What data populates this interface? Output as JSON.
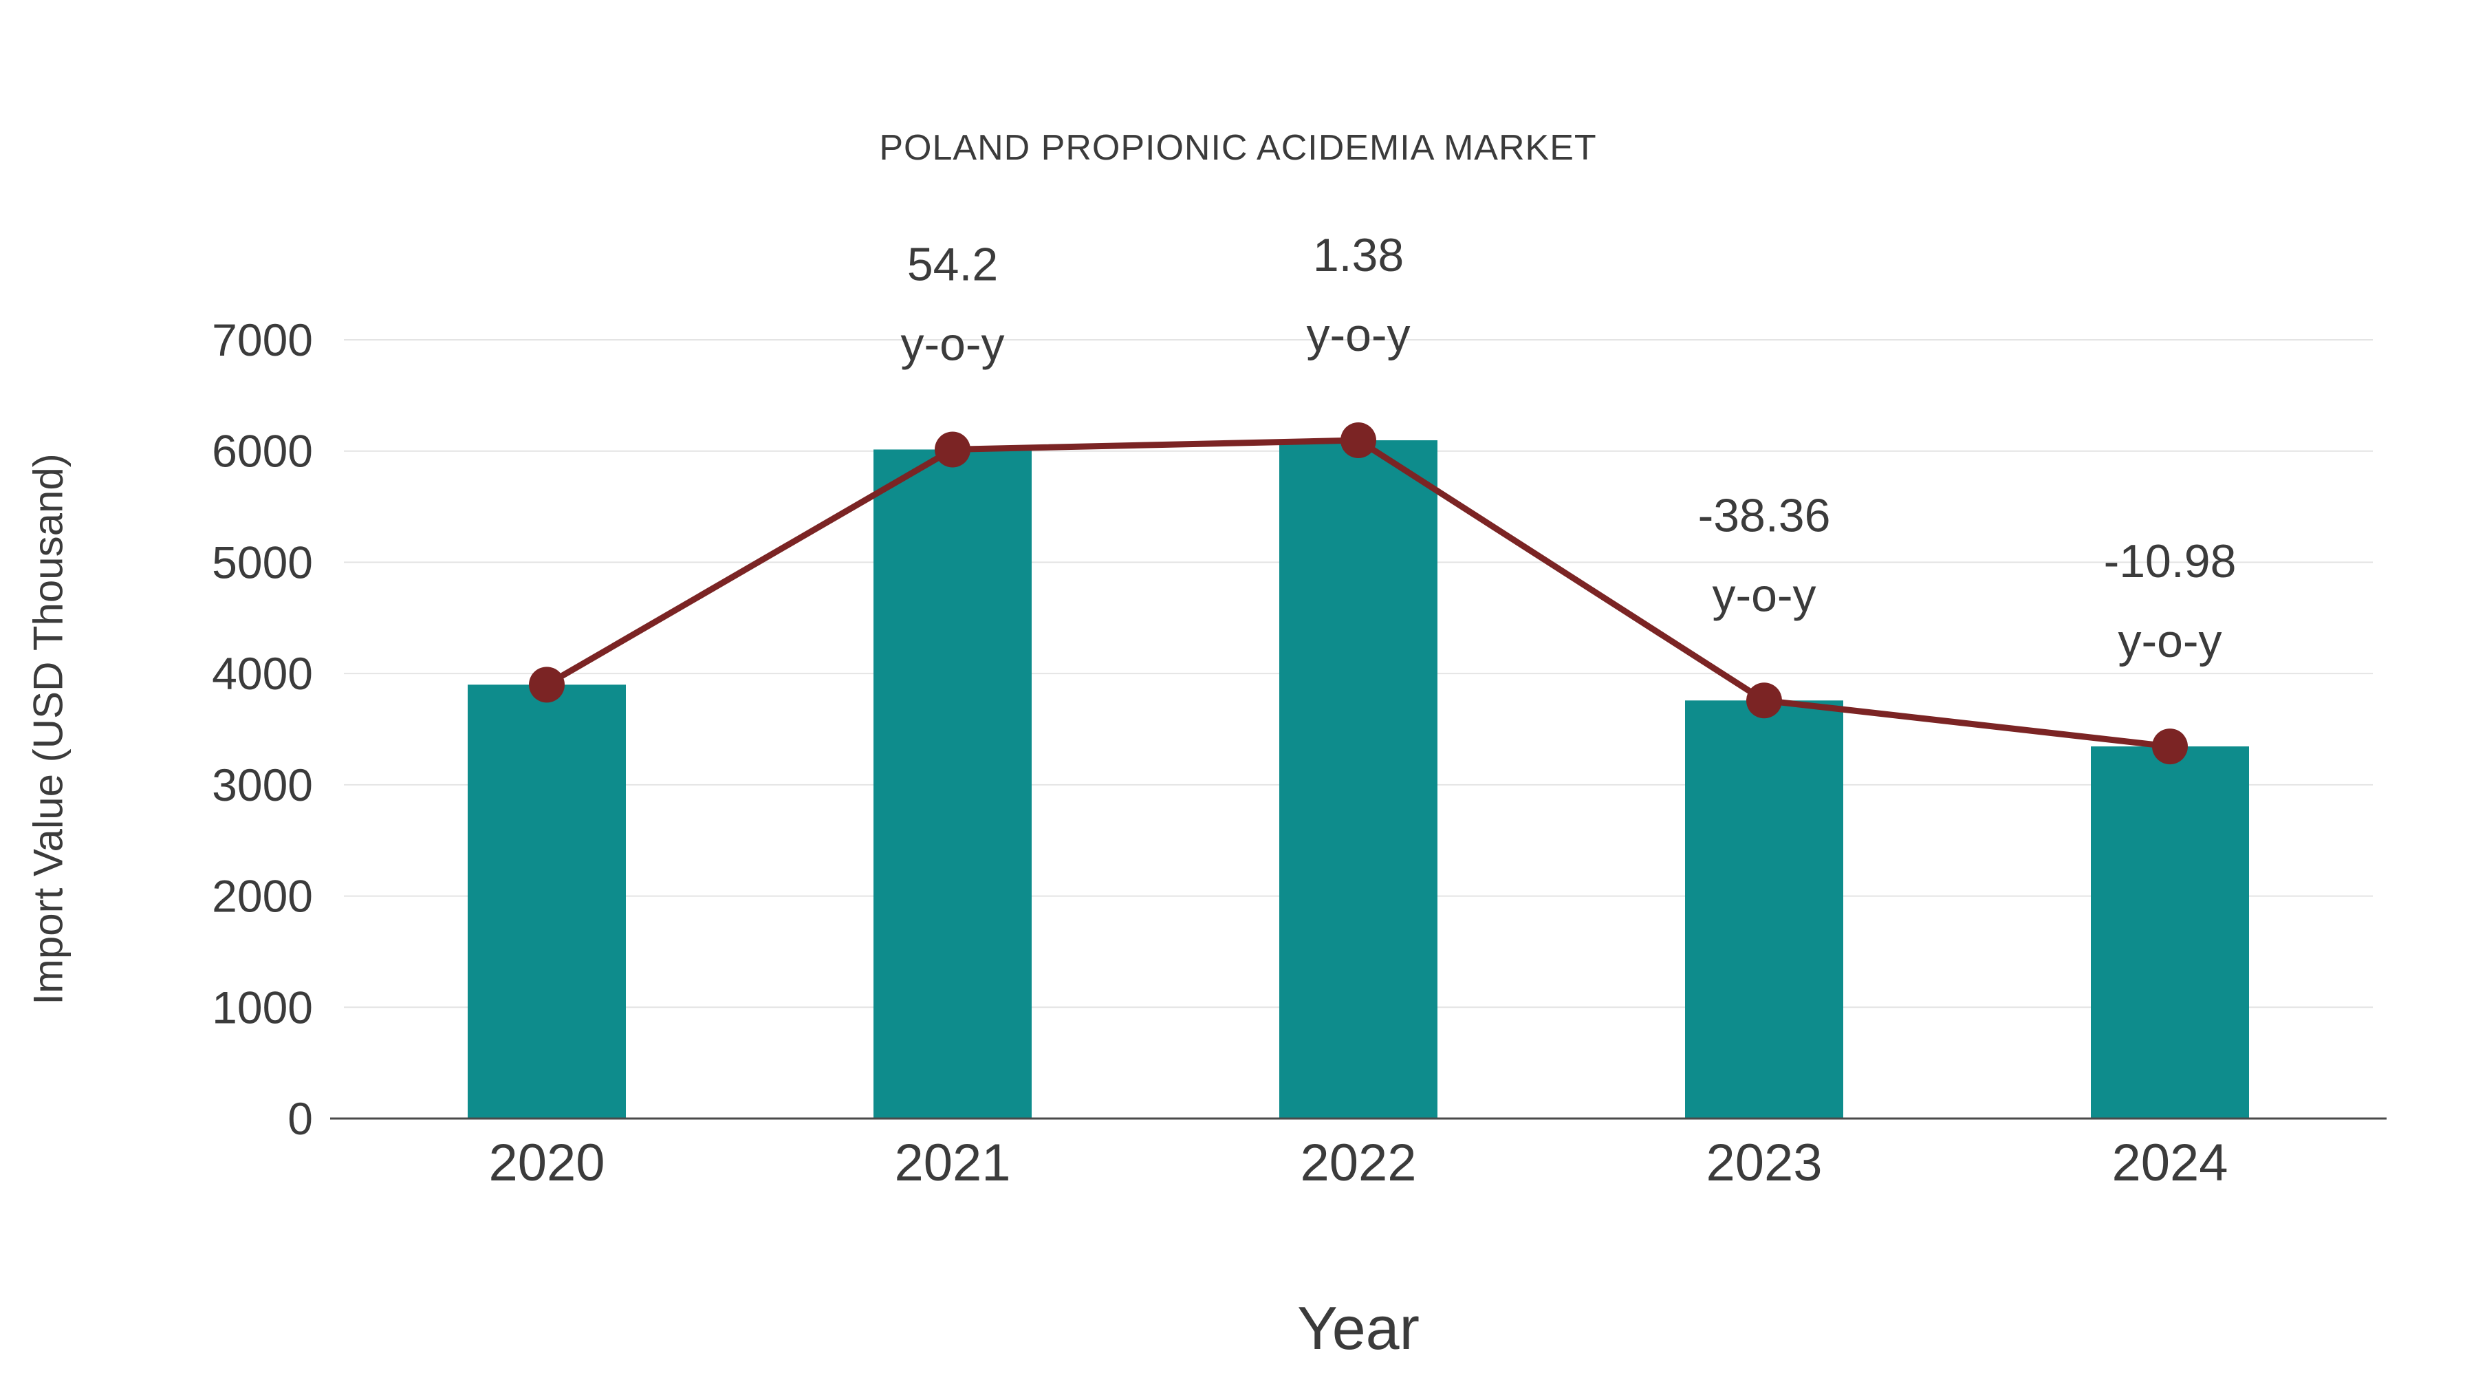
{
  "title": "POLAND PROPIONIC ACIDEMIA MARKET",
  "colors": {
    "bar": "#0E8C8C",
    "line": "#7B2424",
    "marker": "#7B2424",
    "grid": "#E4E4E4",
    "axis": "#4A4A4A",
    "text": "#3B3B3B"
  },
  "chart_data": {
    "type": "bar",
    "title": "POLAND PROPIONIC ACIDEMIA MARKET",
    "xlabel": "Year",
    "ylabel": "Import Value (USD Thousand)",
    "categories": [
      "2020",
      "2021",
      "2022",
      "2023",
      "2024"
    ],
    "series": [
      {
        "name": "Import Value",
        "type": "bar",
        "values": [
          3900,
          6014,
          6097,
          3758,
          3345
        ]
      },
      {
        "name": "y-o-y trend",
        "type": "line",
        "values": [
          3900,
          6014,
          6097,
          3758,
          3345
        ]
      }
    ],
    "annotations": [
      {
        "index": 1,
        "line1": "54.2",
        "line2": "y-o-y"
      },
      {
        "index": 2,
        "line1": "1.38",
        "line2": "y-o-y"
      },
      {
        "index": 3,
        "line1": "-38.36",
        "line2": "y-o-y"
      },
      {
        "index": 4,
        "line1": "-10.98",
        "line2": "y-o-y"
      }
    ],
    "ylim": [
      0,
      7000
    ],
    "yticks": [
      0,
      1000,
      2000,
      3000,
      4000,
      5000,
      6000,
      7000
    ],
    "grid": true,
    "legend_position": "none"
  }
}
